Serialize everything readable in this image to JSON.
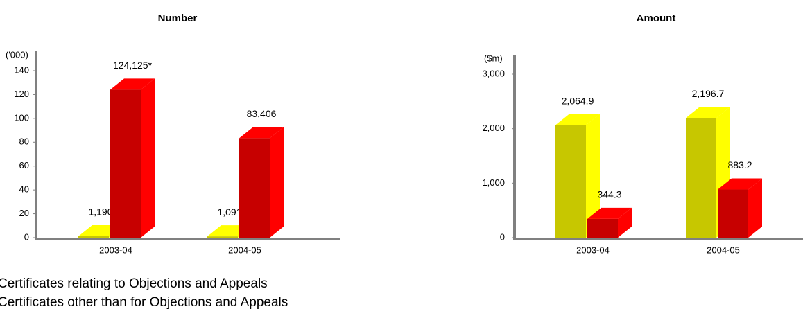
{
  "chart_data": [
    {
      "type": "bar3d",
      "title": "Number",
      "y_axis_label": "('000)",
      "categories": [
        "2003-04",
        "2004-05"
      ],
      "series": [
        {
          "name": "Certificates relating to Objections and Appeals",
          "color": "#ffff00",
          "values": [
            1.19,
            1.091
          ],
          "value_labels": [
            "1,190",
            "1,091"
          ]
        },
        {
          "name": "Certificates other than for Objections and Appeals",
          "color": "#ff0000",
          "values": [
            124.125,
            83.406
          ],
          "value_labels": [
            "124,125*",
            "83,406"
          ]
        }
      ],
      "ylim": [
        0,
        140
      ],
      "yticks": [
        0,
        20,
        40,
        60,
        80,
        100,
        120,
        140
      ]
    },
    {
      "type": "bar3d",
      "title": "Amount",
      "y_axis_label": "($m)",
      "categories": [
        "2003-04",
        "2004-05"
      ],
      "series": [
        {
          "color": "#ffff00",
          "values": [
            2064.9,
            2196.7
          ],
          "value_labels": [
            "2,064.9",
            "2,196.7"
          ]
        },
        {
          "color": "#ff0000",
          "values": [
            344.3,
            883.2
          ],
          "value_labels": [
            "344.3",
            "883.2"
          ]
        }
      ],
      "ylim": [
        0,
        3000
      ],
      "yticks": [
        0,
        {
          "value": 1000,
          "label": "1,000"
        },
        {
          "value": 2000,
          "label": "2,000"
        },
        {
          "value": 3000,
          "label": "3,000"
        }
      ]
    }
  ]
}
